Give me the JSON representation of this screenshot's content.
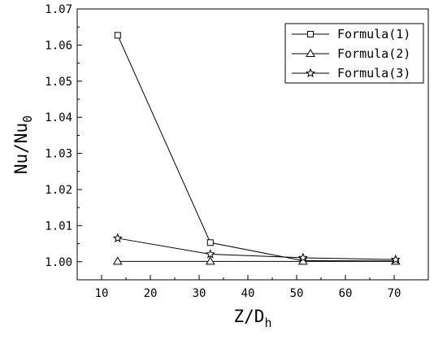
{
  "chart_data": {
    "type": "line",
    "xlabel": "Z/D",
    "xlabel_sub": "h",
    "ylabel": "Nu/Nu",
    "ylabel_sub": "0",
    "xlim": [
      5,
      77
    ],
    "ylim": [
      0.995,
      1.07
    ],
    "x_ticks": [
      10,
      20,
      30,
      40,
      50,
      60,
      70
    ],
    "y_ticks": [
      1.0,
      1.01,
      1.02,
      1.03,
      1.04,
      1.05,
      1.06,
      1.07
    ],
    "y_tick_labels": [
      "1.00",
      "1.01",
      "1.02",
      "1.03",
      "1.04",
      "1.05",
      "1.06",
      "1.07"
    ],
    "x": [
      13.3,
      32.3,
      51.3,
      70.3
    ],
    "series": [
      {
        "name": "Formula(1)",
        "marker": "square",
        "values": [
          1.0627,
          1.0053,
          1.0003,
          1.0002
        ]
      },
      {
        "name": "Formula(2)",
        "marker": "triangle",
        "values": [
          1.0001,
          1.0001,
          1.0001,
          1.0001
        ]
      },
      {
        "name": "Formula(3)",
        "marker": "star",
        "values": [
          1.0065,
          1.0021,
          1.0011,
          1.0006
        ]
      }
    ],
    "legend_position": "top-right",
    "grid": false,
    "colors": {
      "line": "#000000",
      "background": "#ffffff"
    }
  }
}
